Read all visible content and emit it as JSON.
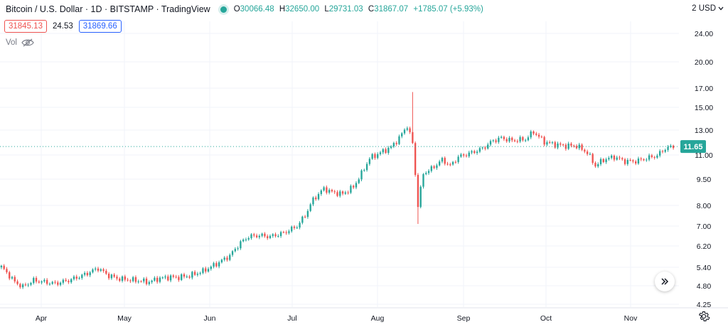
{
  "header": {
    "symbol": "Bitcoin / U.S. Dollar",
    "interval": "1D",
    "exchange": "BITSTAMP",
    "source": "TradingView",
    "separator": "·",
    "ohlc": {
      "o_label": "O",
      "o": "30066.48",
      "h_label": "H",
      "h": "32650.00",
      "l_label": "L",
      "l": "29731.03",
      "c_label": "C",
      "c": "31867.07",
      "change": "+1785.07 (+5.93%)"
    }
  },
  "quote": {
    "bid": "31845.13",
    "spread": "24.53",
    "ask": "31869.66"
  },
  "volume": {
    "label": "Vol",
    "icon": "eye-crossed-icon"
  },
  "currency": {
    "label": "USD",
    "prefix": "2",
    "icon": "chevron-down-icon"
  },
  "controls": {
    "scroll_icon": "double-chevron-right-icon",
    "settings_icon": "gear-icon"
  },
  "colors": {
    "up": "#26a69a",
    "down": "#ef5350",
    "last_price": "#26a69a",
    "grid": "#f0f3fa"
  },
  "chart_data": {
    "type": "candlestick",
    "scale": "log",
    "y_ticks": [
      "24.00",
      "20.00",
      "17.00",
      "15.00",
      "13.00",
      "11.00",
      "9.50",
      "8.00",
      "7.00",
      "6.20",
      "5.40",
      "4.80",
      "4.25"
    ],
    "x_ticks": [
      "Apr",
      "May",
      "Jun",
      "Jul",
      "Aug",
      "Sep",
      "Oct",
      "Nov"
    ],
    "last_price_label": "11.65",
    "last_price": 11.65,
    "ylim": [
      4.25,
      24.0
    ],
    "grid": true,
    "close_waypoints": [
      [
        0,
        5.4
      ],
      [
        3,
        5.1
      ],
      [
        5,
        4.9
      ],
      [
        8,
        4.75
      ],
      [
        12,
        4.95
      ],
      [
        16,
        4.9
      ],
      [
        20,
        4.85
      ],
      [
        25,
        4.95
      ],
      [
        30,
        5.1
      ],
      [
        36,
        5.35
      ],
      [
        40,
        5.1
      ],
      [
        44,
        5.0
      ],
      [
        50,
        4.95
      ],
      [
        55,
        4.9
      ],
      [
        58,
        5.0
      ],
      [
        62,
        5.05
      ],
      [
        66,
        5.05
      ],
      [
        70,
        5.1
      ],
      [
        75,
        5.25
      ],
      [
        80,
        5.5
      ],
      [
        85,
        5.8
      ],
      [
        89,
        6.3
      ],
      [
        92,
        6.55
      ],
      [
        96,
        6.6
      ],
      [
        100,
        6.55
      ],
      [
        105,
        6.7
      ],
      [
        110,
        7.0
      ],
      [
        113,
        7.5
      ],
      [
        116,
        8.3
      ],
      [
        120,
        8.9
      ],
      [
        123,
        8.7
      ],
      [
        127,
        8.6
      ],
      [
        131,
        9.0
      ],
      [
        134,
        9.8
      ],
      [
        137,
        10.8
      ],
      [
        141,
        11.2
      ],
      [
        145,
        11.6
      ],
      [
        148,
        12.3
      ],
      [
        151,
        13.3
      ],
      [
        153,
        11.9
      ],
      [
        155,
        8.0
      ],
      [
        157,
        9.8
      ],
      [
        160,
        10.1
      ],
      [
        164,
        10.7
      ],
      [
        167,
        10.3
      ],
      [
        170,
        10.9
      ],
      [
        175,
        11.2
      ],
      [
        179,
        11.5
      ],
      [
        183,
        12.1
      ],
      [
        186,
        12.3
      ],
      [
        190,
        12.1
      ],
      [
        195,
        12.2
      ],
      [
        198,
        12.8
      ],
      [
        202,
        12.0
      ],
      [
        206,
        11.8
      ],
      [
        210,
        11.7
      ],
      [
        214,
        11.7
      ],
      [
        218,
        11.2
      ],
      [
        221,
        10.3
      ],
      [
        224,
        10.7
      ],
      [
        228,
        10.9
      ],
      [
        232,
        10.6
      ],
      [
        236,
        10.6
      ],
      [
        240,
        10.8
      ],
      [
        244,
        11.0
      ],
      [
        247,
        11.5
      ],
      [
        250,
        11.65
      ]
    ],
    "spike_up": {
      "index": 153,
      "high": 16.5
    },
    "spike_down": {
      "index": 155,
      "low": 7.1
    }
  }
}
